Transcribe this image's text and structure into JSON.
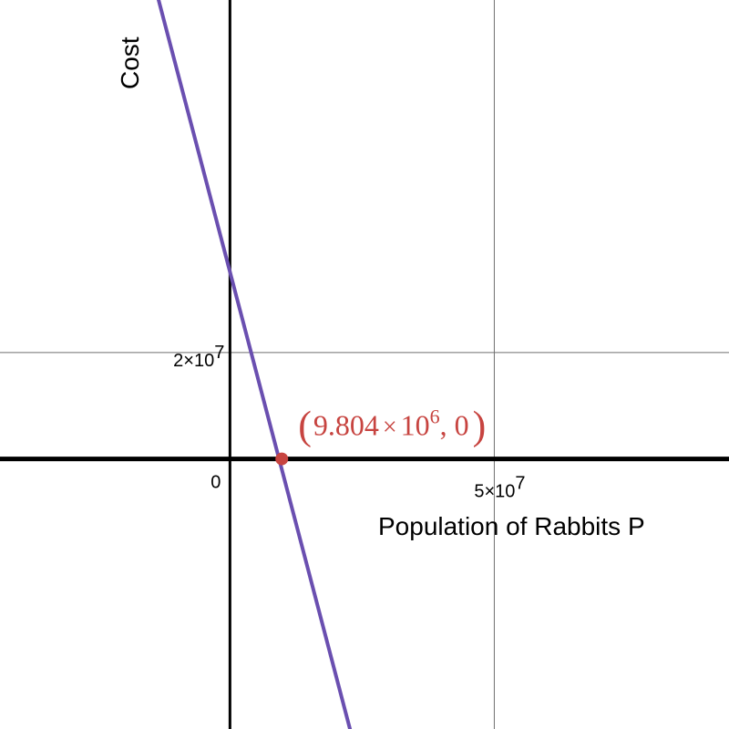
{
  "chart_data": {
    "type": "line",
    "xlabel": "Population of Rabbits P",
    "ylabel": "Cost",
    "xlim": [
      -43500000,
      94400000
    ],
    "ylim": [
      -50800000,
      86300000
    ],
    "grid": true,
    "x_ticks": [
      {
        "value": 0,
        "label": "0"
      },
      {
        "value": 50000000,
        "label": "5×10",
        "exp": "7"
      }
    ],
    "y_ticks": [
      {
        "value": 20000000,
        "label": "2×10",
        "exp": "7"
      }
    ],
    "series": [
      {
        "color": "#6a4fb0",
        "x": [
          -13500000,
          22700000
        ],
        "y": [
          86300000,
          -50800000
        ]
      }
    ],
    "points": [
      {
        "x": 9804000,
        "y": 0,
        "color": "#c74440",
        "label_open": "(",
        "label_mantissa": "9.804",
        "label_times": "×",
        "label_base": "10",
        "label_exp": "6",
        "label_rest": ", 0",
        "label_close": ")"
      }
    ]
  }
}
